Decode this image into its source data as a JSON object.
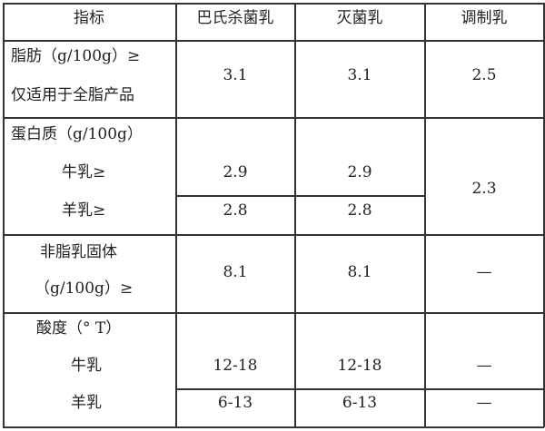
{
  "table": {
    "headers": [
      "指标",
      "巴氏杀菌乳",
      "灭菌乳",
      "调制乳"
    ],
    "rows": {
      "fat": {
        "label_line1": "脂肪（g/100g）≥",
        "label_line2": "仅适用于全脂产品",
        "pasteurized": "3.1",
        "sterilized": "3.1",
        "modified": "2.5"
      },
      "protein": {
        "label": "蛋白质（g/100g）",
        "cow_label": "牛乳≥",
        "goat_label": "羊乳≥",
        "cow_pasteurized": "2.9",
        "cow_sterilized": "2.9",
        "goat_pasteurized": "2.8",
        "goat_sterilized": "2.8",
        "modified": "2.3"
      },
      "nonfat_solids": {
        "label_line1": "非脂乳固体",
        "label_line2": "（g/100g）≥",
        "pasteurized": "8.1",
        "sterilized": "8.1",
        "modified": "—"
      },
      "acidity": {
        "label": "酸度（° T）",
        "cow_label": "牛乳",
        "goat_label": "羊乳",
        "cow_pasteurized": "12-18",
        "cow_sterilized": "12-18",
        "cow_modified": "—",
        "goat_pasteurized": "6-13",
        "goat_sterilized": "6-13",
        "goat_modified": "—"
      }
    }
  }
}
